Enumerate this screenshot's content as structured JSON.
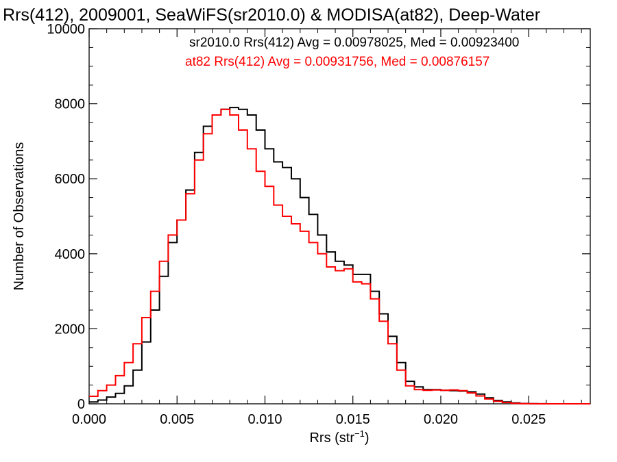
{
  "chart_data": {
    "type": "line",
    "title": "Rrs(412), 2009001, SeaWiFS(sr2010.0) & MODISA(at82), Deep-Water",
    "xlabel": "Rrs (str",
    "xlabel_sup": "−1",
    "xlabel_close": ")",
    "ylabel": "Number of Observations",
    "xlim": [
      0,
      0.0285
    ],
    "ylim": [
      0,
      10000
    ],
    "x_ticks": [
      {
        "value": 0.0,
        "label": "0.000"
      },
      {
        "value": 0.005,
        "label": "0.005"
      },
      {
        "value": 0.01,
        "label": "0.010"
      },
      {
        "value": 0.015,
        "label": "0.015"
      },
      {
        "value": 0.02,
        "label": "0.020"
      },
      {
        "value": 0.025,
        "label": "0.025"
      }
    ],
    "y_ticks": [
      {
        "value": 0,
        "label": "0"
      },
      {
        "value": 2000,
        "label": "2000"
      },
      {
        "value": 4000,
        "label": "4000"
      },
      {
        "value": 6000,
        "label": "6000"
      },
      {
        "value": 8000,
        "label": "8000"
      },
      {
        "value": 10000,
        "label": "10000"
      }
    ],
    "grid": false,
    "series": [
      {
        "name": "sr2010.0 Rrs(412) Avg = 0.00978025, Med = 0.00923400",
        "color": "#000000",
        "x": [
          0.0,
          0.0005,
          0.001,
          0.0015,
          0.002,
          0.0025,
          0.003,
          0.0035,
          0.004,
          0.0045,
          0.005,
          0.0055,
          0.006,
          0.0065,
          0.007,
          0.0075,
          0.008,
          0.0085,
          0.009,
          0.0095,
          0.01,
          0.0105,
          0.011,
          0.0115,
          0.012,
          0.0125,
          0.013,
          0.0135,
          0.014,
          0.0145,
          0.015,
          0.0155,
          0.016,
          0.0165,
          0.017,
          0.0175,
          0.018,
          0.0185,
          0.019,
          0.0195,
          0.02,
          0.0205,
          0.021,
          0.0215,
          0.022,
          0.0225,
          0.023,
          0.0235,
          0.024,
          0.0245,
          0.025,
          0.0255,
          0.026,
          0.0265,
          0.027,
          0.0275,
          0.028,
          0.0285
        ],
        "y": [
          50,
          100,
          180,
          280,
          480,
          900,
          1650,
          2500,
          3400,
          4300,
          4900,
          5700,
          6700,
          7400,
          7700,
          7850,
          7900,
          7850,
          7700,
          7300,
          6800,
          6450,
          6300,
          6000,
          5500,
          5050,
          4500,
          4050,
          3800,
          3700,
          3450,
          3450,
          3000,
          2400,
          1800,
          1100,
          600,
          450,
          380,
          380,
          360,
          350,
          340,
          320,
          260,
          160,
          90,
          50,
          25,
          10,
          5,
          2,
          0,
          0,
          0,
          0,
          0,
          0
        ]
      },
      {
        "name": "at82 Rrs(412) Avg = 0.00931756, Med = 0.00876157",
        "color": "#ff0000",
        "x": [
          0.0,
          0.0005,
          0.001,
          0.0015,
          0.002,
          0.0025,
          0.003,
          0.0035,
          0.004,
          0.0045,
          0.005,
          0.0055,
          0.006,
          0.0065,
          0.007,
          0.0075,
          0.008,
          0.0085,
          0.009,
          0.0095,
          0.01,
          0.0105,
          0.011,
          0.0115,
          0.012,
          0.0125,
          0.013,
          0.0135,
          0.014,
          0.0145,
          0.015,
          0.0155,
          0.016,
          0.0165,
          0.017,
          0.0175,
          0.018,
          0.0185,
          0.019,
          0.0195,
          0.02,
          0.0205,
          0.021,
          0.0215,
          0.022,
          0.0225,
          0.023,
          0.0235,
          0.024,
          0.0245,
          0.025,
          0.0255,
          0.026,
          0.0265,
          0.027,
          0.0275,
          0.028,
          0.0285
        ],
        "y": [
          200,
          350,
          500,
          750,
          1100,
          1600,
          2300,
          3000,
          3800,
          4500,
          4900,
          5600,
          6500,
          7200,
          7700,
          7850,
          7700,
          7300,
          6800,
          6200,
          5800,
          5300,
          5000,
          4800,
          4600,
          4300,
          4000,
          3650,
          3550,
          3600,
          3250,
          3200,
          2800,
          2200,
          1600,
          900,
          480,
          380,
          360,
          370,
          360,
          370,
          350,
          290,
          210,
          130,
          70,
          35,
          15,
          5,
          2,
          0,
          0,
          0,
          0,
          0,
          0,
          0
        ]
      }
    ],
    "legend_placement": "top-right"
  }
}
